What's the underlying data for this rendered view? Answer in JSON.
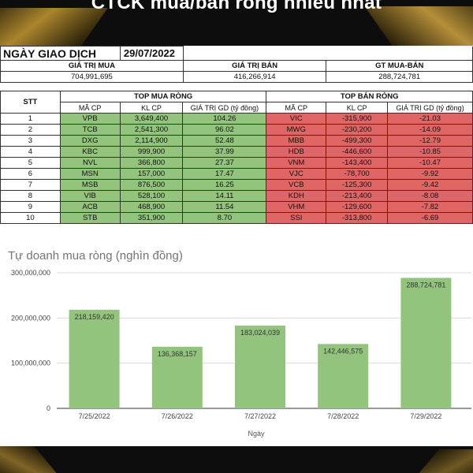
{
  "header": {
    "title": "CTCK mua/bán ròng nhiều nhất"
  },
  "summary": {
    "date_label": "NGÀY GIAO DỊCH",
    "date_value": "29/07/2022",
    "buy_label": "GIÁ TRỊ MUA",
    "buy_value": "704,991,695",
    "sell_label": "GIÁ TRỊ BÁN",
    "sell_value": "416,266,914",
    "net_label": "GT MUA-BÁN",
    "net_value": "288,724,781"
  },
  "table": {
    "stt_label": "STT",
    "buy_group": "TOP MUA RÒNG",
    "sell_group": "TOP BÁN RÒNG",
    "col_code": "MÃ CP",
    "col_qty": "KL CP",
    "col_val": "GIÁ TRỊ GD (tỷ đồng)",
    "rows": [
      {
        "stt": "1",
        "buy_code": "VPB",
        "buy_qty": "3,649,400",
        "buy_val": "104.26",
        "sell_code": "VIC",
        "sell_qty": "-315,900",
        "sell_val": "-21.03"
      },
      {
        "stt": "2",
        "buy_code": "TCB",
        "buy_qty": "2,541,300",
        "buy_val": "96.02",
        "sell_code": "MWG",
        "sell_qty": "-230,200",
        "sell_val": "-14.09"
      },
      {
        "stt": "3",
        "buy_code": "DXG",
        "buy_qty": "2,114,900",
        "buy_val": "52.48",
        "sell_code": "MBB",
        "sell_qty": "-499,300",
        "sell_val": "-12.79"
      },
      {
        "stt": "4",
        "buy_code": "KBC",
        "buy_qty": "999,900",
        "buy_val": "37.99",
        "sell_code": "HDB",
        "sell_qty": "-446,600",
        "sell_val": "-10.85"
      },
      {
        "stt": "5",
        "buy_code": "NVL",
        "buy_qty": "366,800",
        "buy_val": "27.37",
        "sell_code": "VNM",
        "sell_qty": "-143,400",
        "sell_val": "-10.47"
      },
      {
        "stt": "6",
        "buy_code": "MSN",
        "buy_qty": "157,000",
        "buy_val": "17.47",
        "sell_code": "VJC",
        "sell_qty": "-78,700",
        "sell_val": "-9.92"
      },
      {
        "stt": "7",
        "buy_code": "MSB",
        "buy_qty": "876,500",
        "buy_val": "16.25",
        "sell_code": "VCB",
        "sell_qty": "-125,300",
        "sell_val": "-9.42"
      },
      {
        "stt": "8",
        "buy_code": "VIB",
        "buy_qty": "528,100",
        "buy_val": "14.11",
        "sell_code": "KDH",
        "sell_qty": "-213,400",
        "sell_val": "-8.08"
      },
      {
        "stt": "9",
        "buy_code": "ACB",
        "buy_qty": "468,900",
        "buy_val": "11.54",
        "sell_code": "VHM",
        "sell_qty": "-129,600",
        "sell_val": "-7.82"
      },
      {
        "stt": "10",
        "buy_code": "STB",
        "buy_qty": "351,900",
        "buy_val": "8.70",
        "sell_code": "SSI",
        "sell_qty": "-313,800",
        "sell_val": "-6.69"
      }
    ]
  },
  "colors": {
    "buy": "#92c47d",
    "sell": "#e06666",
    "bar": "#93c47d"
  },
  "chart_data": {
    "type": "bar",
    "title": "Tự doanh mua ròng (nghìn đồng)",
    "xlabel": "Ngày",
    "ylabel": "",
    "categories": [
      "7/25/2022",
      "7/26/2022",
      "7/27/2022",
      "7/28/2022",
      "7/29/2022"
    ],
    "values": [
      218159420,
      136368157,
      183024039,
      142446575,
      288724781
    ],
    "value_labels": [
      "218,159,420",
      "136,368,157",
      "183,024,039",
      "142,446,575",
      "288,724,781"
    ],
    "yticks": [
      0,
      100000000,
      200000000,
      300000000
    ],
    "ytick_labels": [
      "0",
      "100,000,000",
      "200,000,000",
      "300,000,000"
    ],
    "ylim": [
      0,
      300000000
    ],
    "grid": true,
    "legend": "none"
  }
}
